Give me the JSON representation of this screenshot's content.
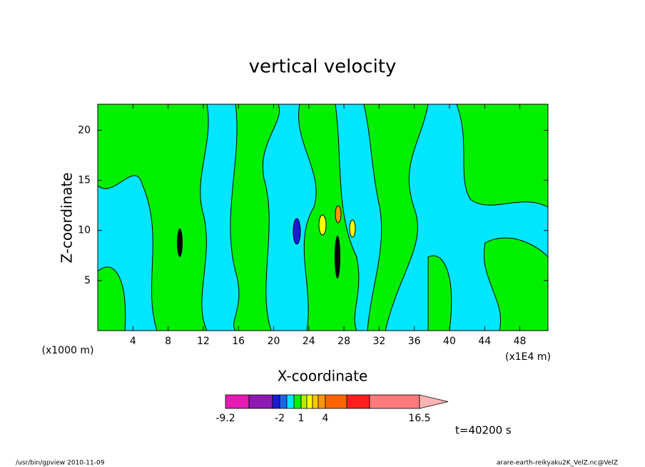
{
  "chart_data": {
    "type": "contour",
    "title": "vertical velocity",
    "xlabel": "X-coordinate",
    "ylabel": "Z-coordinate",
    "x_unit_left": "(x1000 m)",
    "x_unit_right": "(x1E4 m)",
    "xlim": [
      0,
      51.2
    ],
    "ylim": [
      0,
      22.6
    ],
    "xticks": [
      4,
      8,
      12,
      16,
      20,
      24,
      28,
      32,
      36,
      40,
      44,
      48
    ],
    "yticks": [
      5,
      10,
      15,
      20
    ],
    "colorbar": {
      "colors": [
        "#e619b3",
        "#8c19b3",
        "#1a1ad9",
        "#1a66e6",
        "#00e6ff",
        "#00f000",
        "#b3f000",
        "#ffff00",
        "#ffc800",
        "#ff9600",
        "#ff6400",
        "#ff1e1e",
        "#ff7a7a",
        "#ffb3b3"
      ],
      "ticks": [
        -9.2,
        -2,
        1,
        4,
        16.5
      ]
    },
    "annotation": "t=40200 s",
    "footer_left": "/usr/bin/gpview   2010-11-09",
    "footer_right": "arare-earth-reikyaku2K_VelZ.nc@VelZ"
  }
}
